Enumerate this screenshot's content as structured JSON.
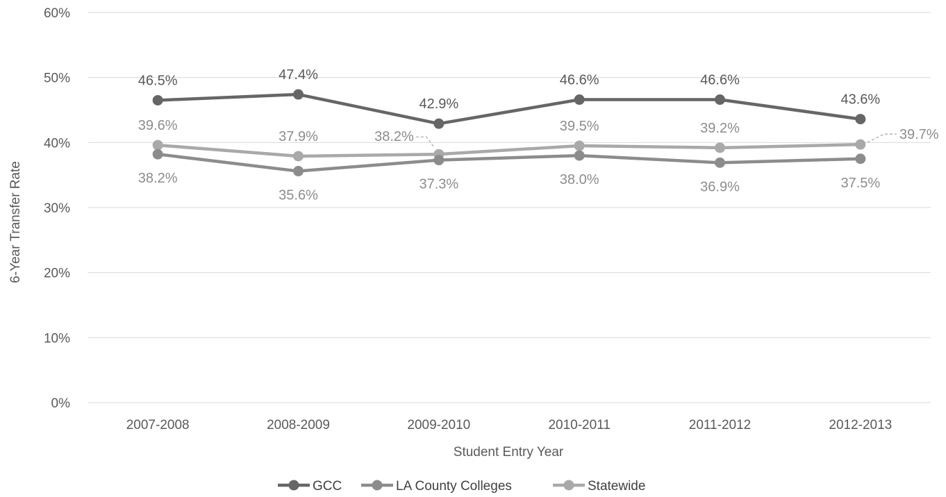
{
  "chart_data": {
    "type": "line",
    "title": "",
    "xlabel": "Student Entry Year",
    "ylabel": "6-Year Transfer Rate",
    "categories": [
      "2007-2008",
      "2008-2009",
      "2009-2010",
      "2010-2011",
      "2011-2012",
      "2012-2013"
    ],
    "ylim": [
      0,
      60
    ],
    "ytick_labels": [
      "0%",
      "10%",
      "20%",
      "30%",
      "40%",
      "50%",
      "60%"
    ],
    "grid": "horizontal",
    "legend_position": "bottom",
    "series": [
      {
        "name": "GCC",
        "color": "#666666",
        "values": [
          46.5,
          47.4,
          42.9,
          46.6,
          46.6,
          43.6
        ],
        "labels": [
          "46.5%",
          "47.4%",
          "42.9%",
          "46.6%",
          "46.6%",
          "43.6%"
        ]
      },
      {
        "name": "LA County Colleges",
        "color": "#8c8c8c",
        "values": [
          38.2,
          35.6,
          37.3,
          38.0,
          36.9,
          37.5
        ],
        "labels": [
          "38.2%",
          "35.6%",
          "37.3%",
          "38.0%",
          "36.9%",
          "37.5%"
        ]
      },
      {
        "name": "Statewide",
        "color": "#a9a9a9",
        "values": [
          39.6,
          37.9,
          38.2,
          39.5,
          39.2,
          39.7
        ],
        "labels": [
          "39.6%",
          "37.9%",
          "38.2%",
          "39.5%",
          "39.2%",
          "39.7%"
        ]
      }
    ]
  }
}
